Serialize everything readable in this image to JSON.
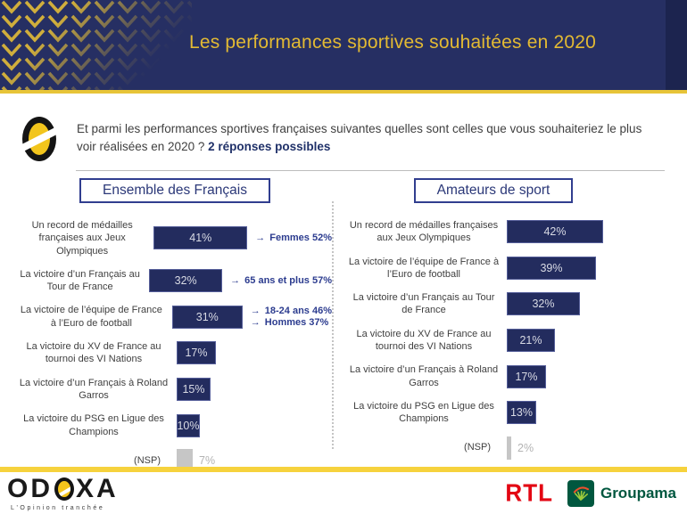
{
  "header": {
    "title": "Les performances sportives souhaitées en 2020",
    "bg_color": "#262f63",
    "accent_color": "#e3ba33"
  },
  "question": {
    "text": "Et parmi les performances sportives françaises suivantes quelles sont celles que vous souhaiteriez le plus voir réalisées en 2020 ? ",
    "bold_note": "2 réponses possibles"
  },
  "icons": {
    "arrow": "→"
  },
  "colors": {
    "bar_navy": "#232c5e",
    "nsp_gray": "#c6c6c6",
    "annotation_navy": "#2c3c8f",
    "gold_line": "#e7c438",
    "footer_gold": "#f6d23d",
    "rtl_red": "#e30613",
    "groupama_green": "#00573f"
  },
  "charts": [
    {
      "title": "Ensemble des Français",
      "rows": [
        {
          "label": "Un record de médailles françaises aux Jeux Olympiques",
          "value": 41,
          "value_label": "41%",
          "annotations": [
            "Femmes 52%"
          ]
        },
        {
          "label": "La victoire d’un Français au Tour de France",
          "value": 32,
          "value_label": "32%",
          "annotations": [
            "65 ans et plus 57%"
          ]
        },
        {
          "label": "La victoire de l’équipe de France à l’Euro de football",
          "value": 31,
          "value_label": "31%",
          "annotations": [
            "18-24 ans 46%",
            "Hommes 37%"
          ]
        },
        {
          "label": "La victoire du XV de France au tournoi des VI Nations",
          "value": 17,
          "value_label": "17%",
          "annotations": []
        },
        {
          "label": "La victoire d’un Français à Roland Garros",
          "value": 15,
          "value_label": "15%",
          "annotations": []
        },
        {
          "label": "La victoire du PSG en Ligue des Champions",
          "value": 10,
          "value_label": "10%",
          "annotations": []
        },
        {
          "label": "(NSP)",
          "value": 7,
          "value_label": "7%",
          "annotations": []
        }
      ]
    },
    {
      "title": "Amateurs de sport",
      "rows": [
        {
          "label": "Un record de médailles françaises aux Jeux Olympiques",
          "value": 42,
          "value_label": "42%",
          "annotations": []
        },
        {
          "label": "La victoire de l’équipe de France à l’Euro de football",
          "value": 39,
          "value_label": "39%",
          "annotations": []
        },
        {
          "label": "La victoire d’un Français au Tour de France",
          "value": 32,
          "value_label": "32%",
          "annotations": []
        },
        {
          "label": "La victoire du XV de France au tournoi des VI Nations",
          "value": 21,
          "value_label": "21%",
          "annotations": []
        },
        {
          "label": "La victoire d’un Français à Roland Garros",
          "value": 17,
          "value_label": "17%",
          "annotations": []
        },
        {
          "label": "La victoire du PSG en Ligue des Champions",
          "value": 13,
          "value_label": "13%",
          "annotations": []
        },
        {
          "label": "(NSP)",
          "value": 2,
          "value_label": "2%",
          "annotations": []
        }
      ]
    }
  ],
  "chart_data": [
    {
      "type": "bar",
      "orientation": "horizontal",
      "title": "Ensemble des Français",
      "unit": "%",
      "categories": [
        "Un record de médailles françaises aux Jeux Olympiques",
        "La victoire d’un Français au Tour de France",
        "La victoire de l’équipe de France à l’Euro de football",
        "La victoire du XV de France au tournoi des VI Nations",
        "La victoire d’un Français à Roland Garros",
        "La victoire du PSG en Ligue des Champions",
        "(NSP)"
      ],
      "values": [
        41,
        32,
        31,
        17,
        15,
        10,
        7
      ],
      "annotations": [
        [
          "Femmes 52%"
        ],
        [
          "65 ans et plus 57%"
        ],
        [
          "18-24 ans 46%",
          "Hommes 37%"
        ],
        [],
        [],
        [],
        []
      ],
      "xlim": [
        0,
        60
      ],
      "grid": false,
      "notes": "NSP bar rendered gray with value outside bar"
    },
    {
      "type": "bar",
      "orientation": "horizontal",
      "title": "Amateurs de sport",
      "unit": "%",
      "categories": [
        "Un record de médailles françaises aux Jeux Olympiques",
        "La victoire de l’équipe de France à l’Euro de football",
        "La victoire d’un Français au Tour de France",
        "La victoire du XV de France au tournoi des VI Nations",
        "La victoire d’un Français à Roland Garros",
        "La victoire du PSG en Ligue des Champions",
        "(NSP)"
      ],
      "values": [
        42,
        39,
        32,
        21,
        17,
        13,
        2
      ],
      "annotations": [
        [],
        [],
        [],
        [],
        [],
        [],
        []
      ],
      "xlim": [
        0,
        60
      ],
      "grid": false,
      "notes": "NSP bar rendered gray with value outside bar"
    }
  ],
  "footer": {
    "odoxa": {
      "left": "OD",
      "right": "XA",
      "tagline": "L'Opinion tranchée"
    },
    "rtl": "RTL",
    "groupama": "Groupama"
  }
}
